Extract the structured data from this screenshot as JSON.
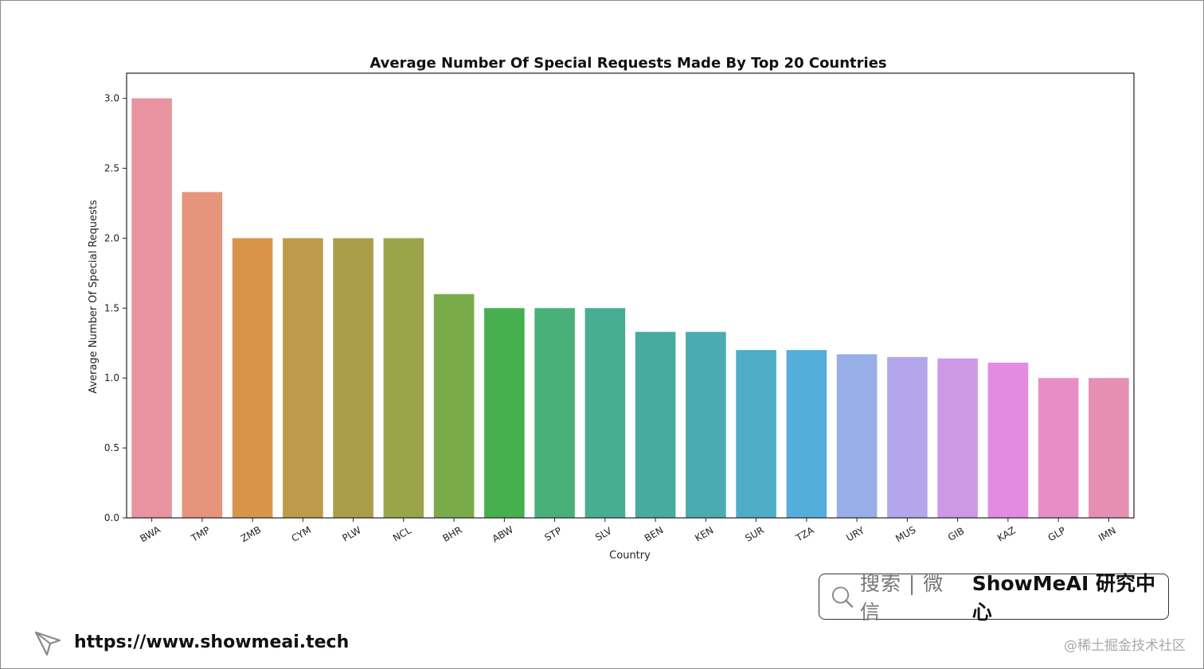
{
  "chart_data": {
    "type": "bar",
    "title": "Average Number Of Special Requests Made By Top 20 Countries",
    "xlabel": "Country",
    "ylabel": "Average Number Of Special Requests",
    "categories": [
      "BWA",
      "TMP",
      "ZMB",
      "CYM",
      "PLW",
      "NCL",
      "BHR",
      "ABW",
      "STP",
      "SLV",
      "BEN",
      "KEN",
      "SUR",
      "TZA",
      "URY",
      "MUS",
      "GIB",
      "KAZ",
      "GLP",
      "IMN"
    ],
    "values": [
      3.0,
      2.33,
      2.0,
      2.0,
      2.0,
      2.0,
      1.6,
      1.5,
      1.5,
      1.5,
      1.33,
      1.33,
      1.2,
      1.2,
      1.17,
      1.15,
      1.14,
      1.11,
      1.0,
      1.0
    ],
    "colors": [
      "#e8939f",
      "#e6947c",
      "#d9944b",
      "#be9b4a",
      "#aa9e4a",
      "#99a548",
      "#7aab4a",
      "#46b04e",
      "#4ab07a",
      "#49ad93",
      "#47ab9f",
      "#4aabb0",
      "#4eacc6",
      "#55addc",
      "#97aee6",
      "#b4a6ea",
      "#cd99e7",
      "#e48ae1",
      "#e88ec7",
      "#e68fb5"
    ],
    "yticks": [
      "0.0",
      "0.5",
      "1.0",
      "1.5",
      "2.0",
      "2.5",
      "3.0"
    ],
    "ylim": [
      0,
      3.18
    ],
    "grid": false
  },
  "search_box": {
    "hint": "搜索 | 微信",
    "brand": "ShowMeAI 研究中心"
  },
  "footer": {
    "url": "https://www.showmeai.tech",
    "watermark": "@稀土掘金技术社区"
  }
}
